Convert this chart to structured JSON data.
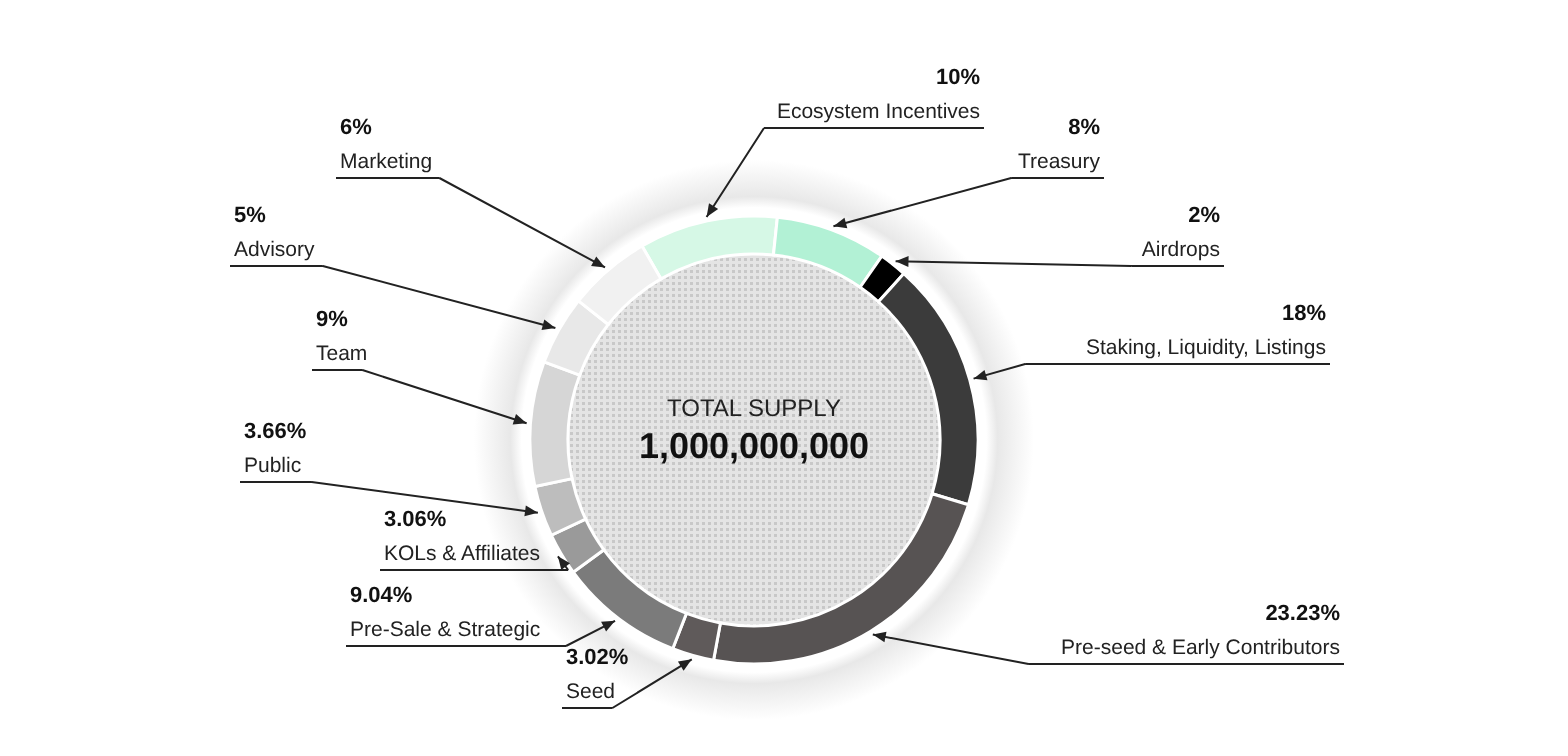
{
  "chart_data": {
    "type": "donut",
    "title": "TOTAL SUPPLY",
    "subtitle": "1,000,000,000",
    "categories": [
      "Ecosystem Incentives",
      "Treasury",
      "Airdrops",
      "Staking, Liquidity, Listings",
      "Pre-seed & Early Contributors",
      "Seed",
      "Pre-Sale & Strategic",
      "KOLs & Affiliates",
      "Public",
      "Team",
      "Advisory",
      "Marketing"
    ],
    "values": [
      10,
      8,
      2,
      18,
      23.23,
      3.02,
      9.04,
      3.06,
      3.66,
      9,
      5,
      6
    ],
    "value_labels": [
      "10%",
      "8%",
      "2%",
      "18%",
      "23.23%",
      "3.02%",
      "9.04%",
      "3.06%",
      "3.66%",
      "9%",
      "5%",
      "6%"
    ],
    "colors": [
      "#d6f8e6",
      "#b2f1d5",
      "#000000",
      "#3b3b3b",
      "#575353",
      "#5f5a5a",
      "#7b7b7b",
      "#9a9a9a",
      "#bdbdbd",
      "#d6d6d6",
      "#e8e8e8",
      "#f1f1f1"
    ]
  }
}
